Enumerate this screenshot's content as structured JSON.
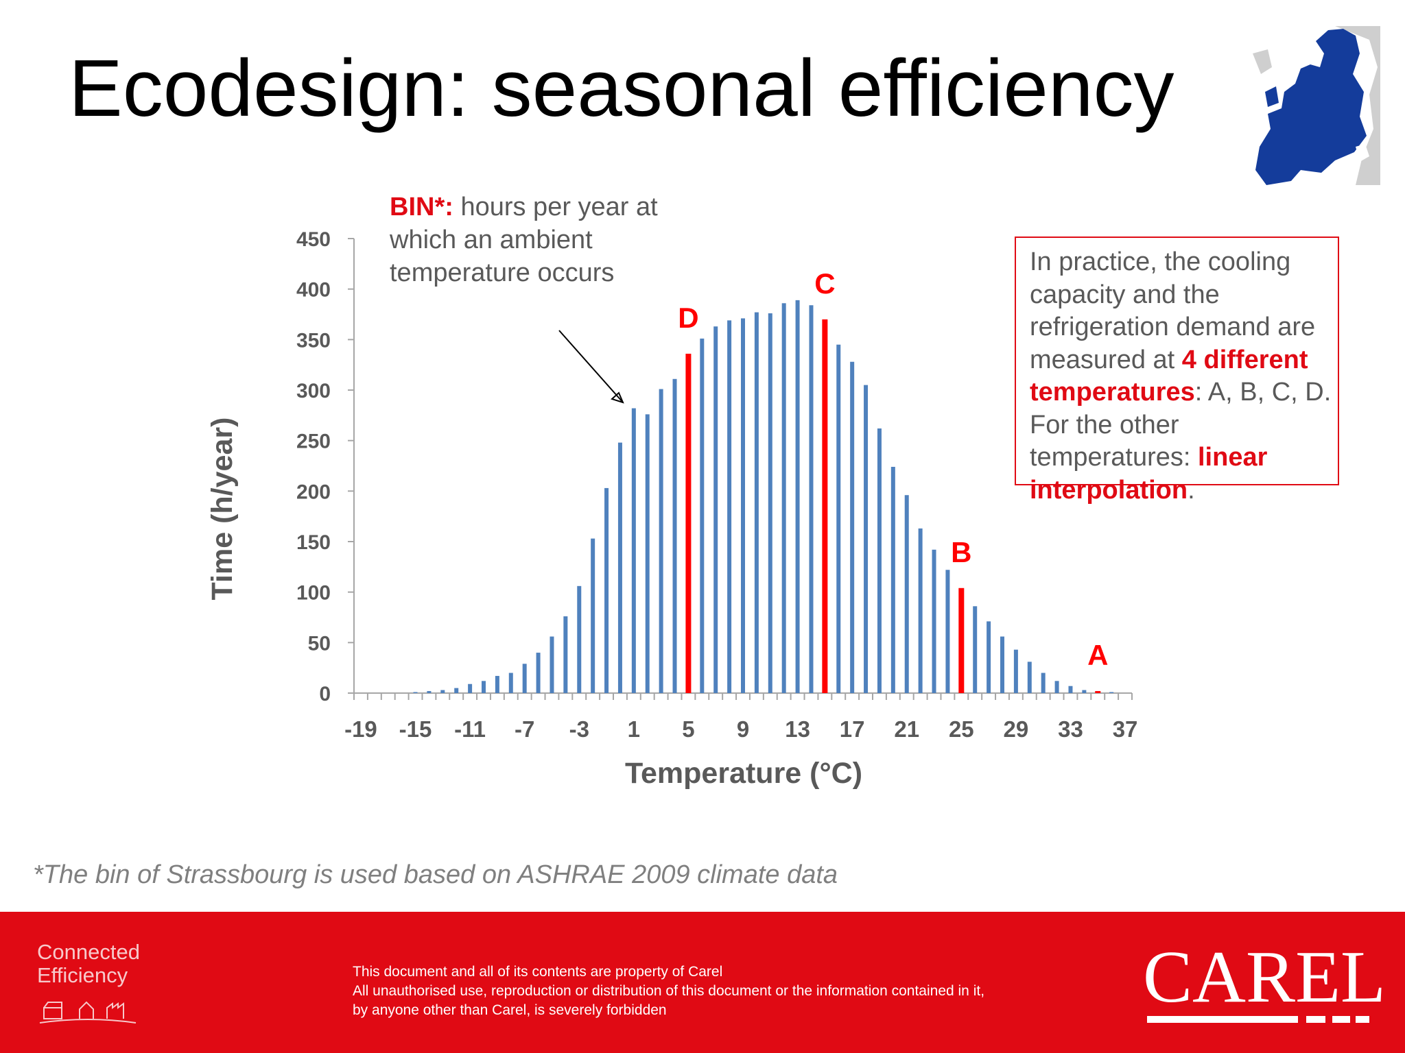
{
  "page": {
    "title": "Ecodesign: seasonal efficiency"
  },
  "bin_note": {
    "term": "BIN*",
    "colon": ":",
    "text": " hours per year at which an ambient temperature occurs"
  },
  "info_box": {
    "p1": "In practice, the cooling capacity and the refrigeration demand are measured at ",
    "h1": "4 different temperatures",
    "p2": ": A, B, C, D. For the other temperatures: ",
    "h2": "linear interpolation",
    "p3": "."
  },
  "footnote": "*The bin of Strassbourg is used based on ASHRAE 2009 climate data",
  "footer": {
    "tagline_line1": "Connected",
    "tagline_line2": "Efficiency",
    "legal_line1": "This document and all of its contents are property of Carel",
    "legal_line2": "All unauthorised use, reproduction or distribution of this document or the information contained in it,",
    "legal_line3": "by anyone other than Carel, is severely forbidden",
    "brand": "CAREL"
  },
  "colors": {
    "bar": "#4f81bd",
    "highlight": "#ff0000",
    "footer": "#e00a14",
    "text_gray": "#595959"
  },
  "chart_data": {
    "type": "bar",
    "title": "",
    "xlabel": "Temperature (°C)",
    "ylabel": "Time (h/year)",
    "ylim": [
      0,
      450
    ],
    "yticks": [
      0,
      50,
      100,
      150,
      200,
      250,
      300,
      350,
      400,
      450
    ],
    "xtick_labels": [
      "-19",
      "-15",
      "-11",
      "-7",
      "-3",
      "1",
      "5",
      "9",
      "13",
      "17",
      "21",
      "25",
      "29",
      "33",
      "37"
    ],
    "x": [
      -19,
      -18,
      -17,
      -16,
      -15,
      -14,
      -13,
      -12,
      -11,
      -10,
      -9,
      -8,
      -7,
      -6,
      -5,
      -4,
      -3,
      -2,
      -1,
      0,
      1,
      2,
      3,
      4,
      5,
      6,
      7,
      8,
      9,
      10,
      11,
      12,
      13,
      14,
      15,
      16,
      17,
      18,
      19,
      20,
      21,
      22,
      23,
      24,
      25,
      26,
      27,
      28,
      29,
      30,
      31,
      32,
      33,
      34,
      35,
      36,
      37
    ],
    "values": [
      0,
      0,
      0,
      0,
      1,
      2,
      3,
      5,
      9,
      12,
      17,
      20,
      29,
      40,
      56,
      76,
      106,
      153,
      203,
      248,
      282,
      276,
      301,
      311,
      336,
      351,
      363,
      369,
      371,
      377,
      376,
      386,
      389,
      384,
      370,
      345,
      328,
      305,
      262,
      224,
      196,
      163,
      142,
      122,
      104,
      86,
      71,
      56,
      43,
      31,
      20,
      12,
      7,
      3,
      2,
      1,
      0
    ],
    "highlights": [
      {
        "label": "D",
        "x": 5
      },
      {
        "label": "C",
        "x": 15
      },
      {
        "label": "B",
        "x": 25
      },
      {
        "label": "A",
        "x": 35
      }
    ],
    "annotation": "BIN*: hours per year at which an ambient temperature occurs",
    "grid": false,
    "legend": "none"
  }
}
